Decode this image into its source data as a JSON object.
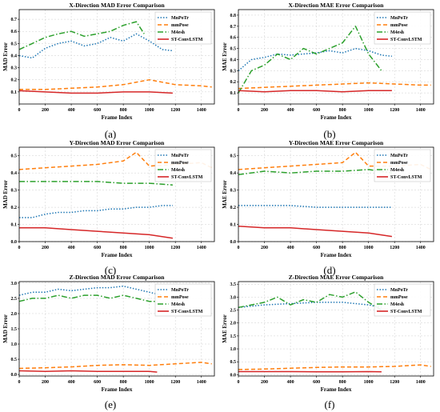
{
  "chart_data": [
    {
      "type": "line",
      "panel_label": "(a)",
      "title": "X-Direction MAD Error Comparison",
      "xlabel": "Frame Index",
      "ylabel": "MAD Error",
      "xlim": [
        0,
        1500
      ],
      "ylim": [
        0.0,
        0.78
      ],
      "xticks": [
        "0",
        "200",
        "400",
        "600",
        "800",
        "1000",
        "1200",
        "1400"
      ],
      "yticks": [
        "0.1",
        "0.2",
        "0.3",
        "0.4",
        "0.5",
        "0.6",
        "0.7"
      ],
      "grid": true,
      "legend_position": "top-right",
      "series": [
        {
          "name": "MnPoTr",
          "color": "#1f77b4",
          "dash": "dotted",
          "x": [
            0,
            100,
            200,
            300,
            400,
            500,
            600,
            700,
            800,
            900,
            1000,
            1100,
            1180
          ],
          "values": [
            0.4,
            0.38,
            0.46,
            0.5,
            0.52,
            0.48,
            0.5,
            0.55,
            0.52,
            0.58,
            0.52,
            0.45,
            0.44
          ]
        },
        {
          "name": "mmPose",
          "color": "#ff7f0e",
          "dash": "dashed",
          "x": [
            0,
            200,
            400,
            600,
            800,
            1000,
            1200,
            1400,
            1480
          ],
          "values": [
            0.12,
            0.12,
            0.13,
            0.14,
            0.16,
            0.2,
            0.16,
            0.15,
            0.14
          ]
        },
        {
          "name": "M4esh",
          "color": "#2ca02c",
          "dash": "dashdot",
          "x": [
            0,
            100,
            200,
            300,
            400,
            500,
            600,
            700,
            800,
            900,
            960
          ],
          "values": [
            0.45,
            0.5,
            0.55,
            0.58,
            0.6,
            0.56,
            0.58,
            0.6,
            0.65,
            0.68,
            0.58
          ]
        },
        {
          "name": "ST-ConvLSTM",
          "color": "#d62728",
          "dash": "solid",
          "x": [
            0,
            200,
            400,
            600,
            800,
            1000,
            1180
          ],
          "values": [
            0.11,
            0.1,
            0.09,
            0.09,
            0.1,
            0.1,
            0.09
          ]
        }
      ]
    },
    {
      "type": "line",
      "panel_label": "(b)",
      "title": "X-Direction MAE Error Comparison",
      "xlabel": "Frame Index",
      "ylabel": "MAE Error",
      "xlim": [
        0,
        1500
      ],
      "ylim": [
        0.0,
        0.85
      ],
      "xticks": [
        "0",
        "200",
        "400",
        "600",
        "800",
        "1000",
        "1200",
        "1400"
      ],
      "yticks": [
        "0.1",
        "0.2",
        "0.3",
        "0.4",
        "0.5",
        "0.6",
        "0.7",
        "0.8"
      ],
      "grid": true,
      "legend_position": "top-right",
      "series": [
        {
          "name": "MnPoTr",
          "color": "#1f77b4",
          "dash": "dotted",
          "x": [
            0,
            100,
            200,
            300,
            400,
            500,
            600,
            700,
            800,
            900,
            1000,
            1100,
            1180
          ],
          "values": [
            0.3,
            0.4,
            0.42,
            0.45,
            0.44,
            0.45,
            0.46,
            0.48,
            0.46,
            0.5,
            0.48,
            0.44,
            0.43
          ]
        },
        {
          "name": "mmPose",
          "color": "#ff7f0e",
          "dash": "dashed",
          "x": [
            0,
            200,
            400,
            600,
            800,
            1000,
            1200,
            1400,
            1480
          ],
          "values": [
            0.14,
            0.15,
            0.16,
            0.17,
            0.18,
            0.19,
            0.18,
            0.17,
            0.17
          ]
        },
        {
          "name": "M4esh",
          "color": "#2ca02c",
          "dash": "dashdot",
          "x": [
            0,
            100,
            200,
            300,
            400,
            500,
            600,
            700,
            800,
            900,
            1000,
            1100
          ],
          "values": [
            0.1,
            0.3,
            0.35,
            0.45,
            0.4,
            0.5,
            0.45,
            0.5,
            0.55,
            0.7,
            0.45,
            0.3
          ]
        },
        {
          "name": "ST-ConvLSTM",
          "color": "#d62728",
          "dash": "solid",
          "x": [
            0,
            200,
            400,
            600,
            800,
            1000,
            1180
          ],
          "values": [
            0.12,
            0.11,
            0.12,
            0.12,
            0.11,
            0.12,
            0.12
          ]
        }
      ]
    },
    {
      "type": "line",
      "panel_label": "(c)",
      "title": "Y-Direction MAD Error Comparison",
      "xlabel": "Frame Index",
      "ylabel": "MAD Error",
      "xlim": [
        0,
        1500
      ],
      "ylim": [
        0.0,
        0.55
      ],
      "xticks": [
        "0",
        "200",
        "400",
        "600",
        "800",
        "1000",
        "1200",
        "1400"
      ],
      "yticks": [
        "0.0",
        "0.1",
        "0.2",
        "0.3",
        "0.4",
        "0.5"
      ],
      "grid": true,
      "legend_position": "top-right",
      "series": [
        {
          "name": "MnPoTr",
          "color": "#1f77b4",
          "dash": "dotted",
          "x": [
            0,
            100,
            200,
            300,
            400,
            500,
            600,
            700,
            800,
            900,
            1000,
            1100,
            1180
          ],
          "values": [
            0.14,
            0.14,
            0.16,
            0.17,
            0.17,
            0.18,
            0.18,
            0.19,
            0.19,
            0.2,
            0.2,
            0.21,
            0.21
          ]
        },
        {
          "name": "mmPose",
          "color": "#ff7f0e",
          "dash": "dashed",
          "x": [
            0,
            200,
            400,
            600,
            800,
            900,
            1000,
            1200,
            1400,
            1480
          ],
          "values": [
            0.42,
            0.43,
            0.44,
            0.45,
            0.47,
            0.52,
            0.44,
            0.45,
            0.46,
            0.43
          ]
        },
        {
          "name": "M4esh",
          "color": "#2ca02c",
          "dash": "dashdot",
          "x": [
            0,
            200,
            400,
            600,
            800,
            1000,
            1180
          ],
          "values": [
            0.35,
            0.35,
            0.35,
            0.35,
            0.34,
            0.34,
            0.33
          ]
        },
        {
          "name": "ST-ConvLSTM",
          "color": "#d62728",
          "dash": "solid",
          "x": [
            0,
            200,
            400,
            600,
            800,
            1000,
            1180
          ],
          "values": [
            0.08,
            0.08,
            0.07,
            0.06,
            0.05,
            0.04,
            0.02
          ]
        }
      ]
    },
    {
      "type": "line",
      "panel_label": "(d)",
      "title": "Y-Direction MAE Error Comparison",
      "xlabel": "Frame Index",
      "ylabel": "MAE Error",
      "xlim": [
        0,
        1500
      ],
      "ylim": [
        0.0,
        0.55
      ],
      "xticks": [
        "0",
        "200",
        "400",
        "600",
        "800",
        "1000",
        "1200",
        "1400"
      ],
      "yticks": [
        "0.0",
        "0.1",
        "0.2",
        "0.3",
        "0.4",
        "0.5"
      ],
      "grid": true,
      "legend_position": "top-right",
      "series": [
        {
          "name": "MnPoTr",
          "color": "#1f77b4",
          "dash": "dotted",
          "x": [
            0,
            200,
            400,
            600,
            800,
            1000,
            1180
          ],
          "values": [
            0.21,
            0.21,
            0.21,
            0.2,
            0.2,
            0.2,
            0.2
          ]
        },
        {
          "name": "mmPose",
          "color": "#ff7f0e",
          "dash": "dashed",
          "x": [
            0,
            200,
            400,
            600,
            800,
            900,
            1000,
            1200,
            1400,
            1480
          ],
          "values": [
            0.42,
            0.43,
            0.44,
            0.45,
            0.46,
            0.52,
            0.44,
            0.44,
            0.45,
            0.42
          ]
        },
        {
          "name": "M4esh",
          "color": "#2ca02c",
          "dash": "dashdot",
          "x": [
            0,
            200,
            400,
            600,
            800,
            1000,
            1180
          ],
          "values": [
            0.39,
            0.41,
            0.4,
            0.41,
            0.41,
            0.42,
            0.4
          ]
        },
        {
          "name": "ST-ConvLSTM",
          "color": "#d62728",
          "dash": "solid",
          "x": [
            0,
            200,
            400,
            600,
            800,
            1000,
            1180
          ],
          "values": [
            0.09,
            0.08,
            0.08,
            0.07,
            0.06,
            0.05,
            0.03
          ]
        }
      ]
    },
    {
      "type": "line",
      "panel_label": "(e)",
      "title": "Z-Direction MAD Error Comparison",
      "xlabel": "Frame Index",
      "ylabel": "MAD Error",
      "xlim": [
        0,
        1500
      ],
      "ylim": [
        -0.05,
        3.05
      ],
      "xticks": [
        "0",
        "200",
        "400",
        "600",
        "800",
        "1000",
        "1200",
        "1400"
      ],
      "yticks": [
        "0.0",
        "0.5",
        "1.0",
        "1.5",
        "2.0",
        "2.5",
        "3.0"
      ],
      "grid": true,
      "legend_position": "top-right",
      "series": [
        {
          "name": "MnPoTr",
          "color": "#1f77b4",
          "dash": "dotted",
          "x": [
            0,
            100,
            200,
            300,
            400,
            500,
            600,
            700,
            800,
            900,
            1000,
            1100
          ],
          "values": [
            2.6,
            2.7,
            2.7,
            2.8,
            2.75,
            2.8,
            2.85,
            2.85,
            2.9,
            2.8,
            2.7,
            2.6
          ]
        },
        {
          "name": "mmPose",
          "color": "#ff7f0e",
          "dash": "dashed",
          "x": [
            0,
            200,
            400,
            600,
            800,
            1000,
            1200,
            1400,
            1480
          ],
          "values": [
            0.2,
            0.22,
            0.25,
            0.3,
            0.32,
            0.3,
            0.35,
            0.4,
            0.35
          ]
        },
        {
          "name": "M4esh",
          "color": "#2ca02c",
          "dash": "dashdot",
          "x": [
            0,
            100,
            200,
            300,
            400,
            500,
            600,
            700,
            800,
            900,
            1000,
            1060
          ],
          "values": [
            2.4,
            2.5,
            2.5,
            2.6,
            2.5,
            2.6,
            2.6,
            2.5,
            2.6,
            2.5,
            2.4,
            2.4
          ]
        },
        {
          "name": "ST-ConvLSTM",
          "color": "#d62728",
          "dash": "solid",
          "x": [
            0,
            200,
            400,
            600,
            800,
            1000,
            1060
          ],
          "values": [
            0.12,
            0.1,
            0.12,
            0.1,
            0.1,
            0.1,
            0.08
          ]
        }
      ]
    },
    {
      "type": "line",
      "panel_label": "(f)",
      "title": "Z-Direction MAE Error Comparison",
      "xlabel": "Frame Index",
      "ylabel": "MAE Error",
      "xlim": [
        0,
        1500
      ],
      "ylim": [
        -0.05,
        3.6
      ],
      "xticks": [
        "0",
        "200",
        "400",
        "600",
        "800",
        "1000",
        "1200",
        "1400"
      ],
      "yticks": [
        "0.0",
        "0.5",
        "1.0",
        "1.5",
        "2.0",
        "2.5",
        "3.0",
        "3.5"
      ],
      "grid": true,
      "legend_position": "top-right",
      "series": [
        {
          "name": "MnPoTr",
          "color": "#1f77b4",
          "dash": "dotted",
          "x": [
            0,
            200,
            400,
            600,
            800,
            1000,
            1100
          ],
          "values": [
            2.6,
            2.7,
            2.75,
            2.8,
            2.8,
            2.7,
            2.6
          ]
        },
        {
          "name": "mmPose",
          "color": "#ff7f0e",
          "dash": "dashed",
          "x": [
            0,
            200,
            400,
            600,
            800,
            1000,
            1200,
            1400,
            1480
          ],
          "values": [
            0.2,
            0.22,
            0.25,
            0.28,
            0.3,
            0.3,
            0.32,
            0.38,
            0.32
          ]
        },
        {
          "name": "M4esh",
          "color": "#2ca02c",
          "dash": "dashdot",
          "x": [
            0,
            100,
            200,
            300,
            400,
            500,
            600,
            700,
            800,
            900,
            1000,
            1100
          ],
          "values": [
            2.6,
            2.7,
            2.8,
            3.0,
            2.7,
            2.9,
            2.8,
            3.1,
            3.0,
            3.2,
            2.8,
            2.5
          ]
        },
        {
          "name": "ST-ConvLSTM",
          "color": "#d62728",
          "dash": "solid",
          "x": [
            0,
            200,
            400,
            600,
            800,
            1000,
            1100
          ],
          "values": [
            0.12,
            0.12,
            0.12,
            0.11,
            0.11,
            0.12,
            0.11
          ]
        }
      ]
    }
  ]
}
